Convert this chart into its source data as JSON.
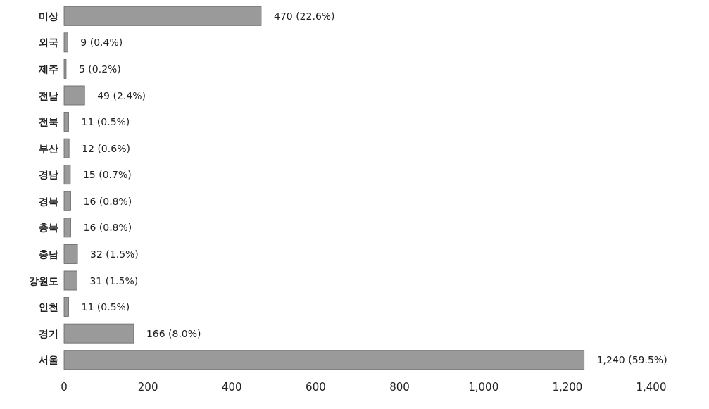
{
  "chart_data": {
    "type": "bar",
    "orientation": "horizontal",
    "categories": [
      "미상",
      "외국",
      "제주",
      "전남",
      "전북",
      "부산",
      "경남",
      "경북",
      "충북",
      "충남",
      "강원도",
      "인천",
      "경기",
      "서울"
    ],
    "values": [
      470,
      9,
      5,
      49,
      11,
      12,
      15,
      16,
      16,
      32,
      31,
      11,
      166,
      1240
    ],
    "value_labels": [
      "470 (22.6%)",
      "9 (0.4%)",
      "5 (0.2%)",
      "49 (2.4%)",
      "11 (0.5%)",
      "12 (0.6%)",
      "15 (0.7%)",
      "16 (0.8%)",
      "16 (0.8%)",
      "32 (1.5%)",
      "31 (1.5%)",
      "11 (0.5%)",
      "166 (8.0%)",
      "1,240 (59.5%)"
    ],
    "color": "#9a9a9a",
    "xlim": [
      0,
      1400
    ],
    "xticks": [
      0,
      200,
      400,
      600,
      800,
      {
        "value": 1000,
        "label": "1,000"
      },
      {
        "value": 1200,
        "label": "1,200"
      },
      {
        "value": 1400,
        "label": "1,400"
      }
    ]
  }
}
